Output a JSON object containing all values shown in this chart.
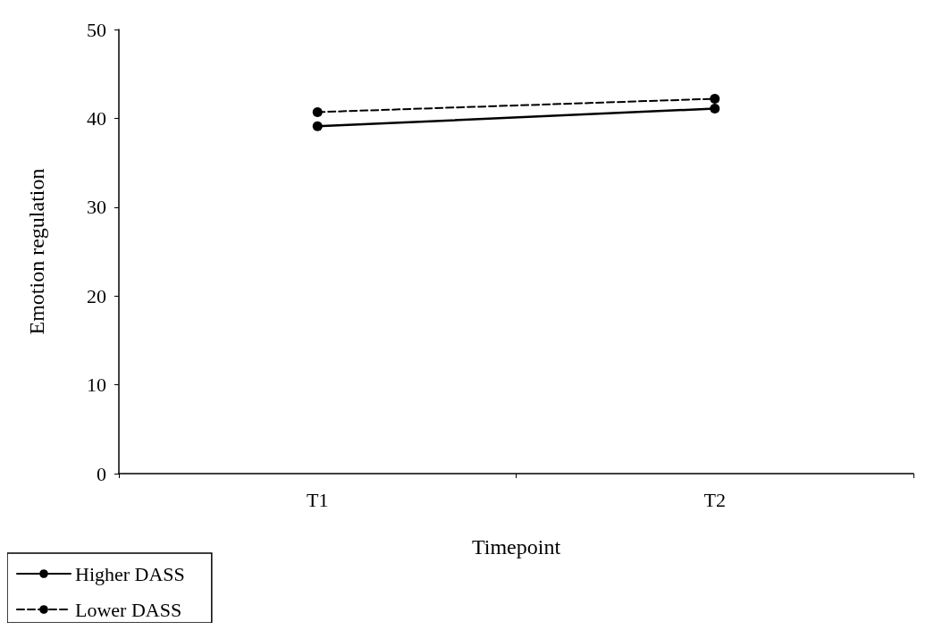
{
  "chart_data": {
    "type": "line",
    "xlabel": "Timepoint",
    "ylabel": "Emotion regulation",
    "categories": [
      "T1",
      "T2"
    ],
    "series": [
      {
        "name": "Higher DASS",
        "color": "#000000",
        "line_style": "solid",
        "values": [
          39.1,
          41.1
        ]
      },
      {
        "name": "Lower DASS",
        "color": "#000000",
        "line_style": "dashed",
        "values": [
          40.7,
          42.2
        ]
      }
    ],
    "ylim": [
      0,
      50
    ],
    "yticks": [
      0,
      10,
      20,
      30,
      40,
      50
    ],
    "grid": false,
    "legend": "bottom left",
    "marker": "circle"
  }
}
